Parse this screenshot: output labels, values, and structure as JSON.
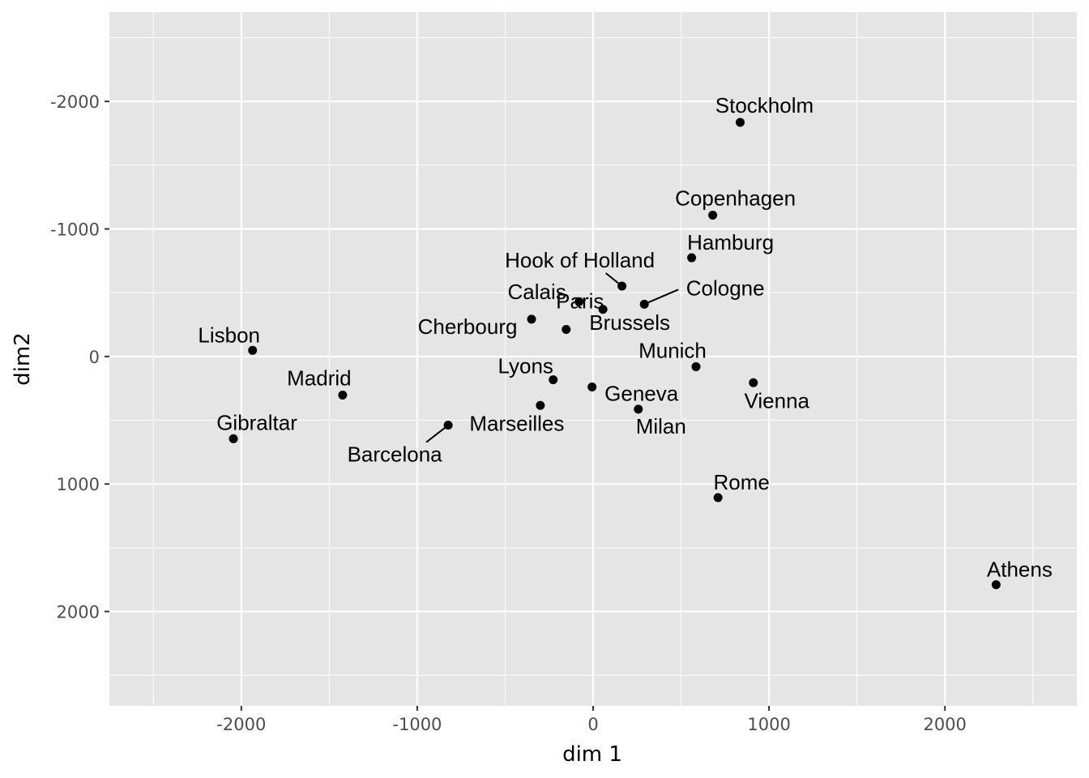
{
  "chart_data": {
    "type": "scatter",
    "xlabel": "dim 1",
    "ylabel": "dim2",
    "xlim": [
      -2750,
      2750
    ],
    "ylim": [
      -2700,
      2740
    ],
    "y_reversed": true,
    "grid": true,
    "x_ticks": [
      -2000,
      -1000,
      0,
      1000,
      2000
    ],
    "y_ticks": [
      -2000,
      -1000,
      0,
      1000,
      2000
    ],
    "x_tick_labels": [
      "-2000",
      "-1000",
      "0",
      "1000",
      "2000"
    ],
    "y_tick_labels": [
      "-2000",
      "-1000",
      "0",
      "1000",
      "2000"
    ],
    "points": [
      {
        "name": "Stockholm",
        "x": 836,
        "y": -1836
      },
      {
        "name": "Copenhagen",
        "x": 680,
        "y": -1108
      },
      {
        "name": "Hamburg",
        "x": 560,
        "y": -774
      },
      {
        "name": "Hook of Holland",
        "x": 164,
        "y": -552
      },
      {
        "name": "Cologne",
        "x": 291,
        "y": -410
      },
      {
        "name": "Calais",
        "x": -80,
        "y": -430
      },
      {
        "name": "Brussels",
        "x": 56,
        "y": -369
      },
      {
        "name": "Cherbourg",
        "x": -350,
        "y": -292
      },
      {
        "name": "Paris",
        "x": -153,
        "y": -212
      },
      {
        "name": "Lisbon",
        "x": -1936,
        "y": -48
      },
      {
        "name": "Munich",
        "x": 585,
        "y": 80
      },
      {
        "name": "Vienna",
        "x": 911,
        "y": 206
      },
      {
        "name": "Madrid",
        "x": -1424,
        "y": 303
      },
      {
        "name": "Lyons",
        "x": -227,
        "y": 183
      },
      {
        "name": "Geneva",
        "x": -6,
        "y": 239
      },
      {
        "name": "Milan",
        "x": 257,
        "y": 413
      },
      {
        "name": "Marseilles",
        "x": -300,
        "y": 384
      },
      {
        "name": "Barcelona",
        "x": -824,
        "y": 539
      },
      {
        "name": "Gibraltar",
        "x": -2045,
        "y": 645
      },
      {
        "name": "Rome",
        "x": 710,
        "y": 1107
      },
      {
        "name": "Athens",
        "x": 2291,
        "y": 1790
      }
    ],
    "colors": {
      "panel": "#e5e5e5",
      "grid_major": "#ffffff",
      "point": "#000000",
      "text": "#000000",
      "tick_text": "#4d4d4d",
      "tick": "#333333"
    }
  }
}
